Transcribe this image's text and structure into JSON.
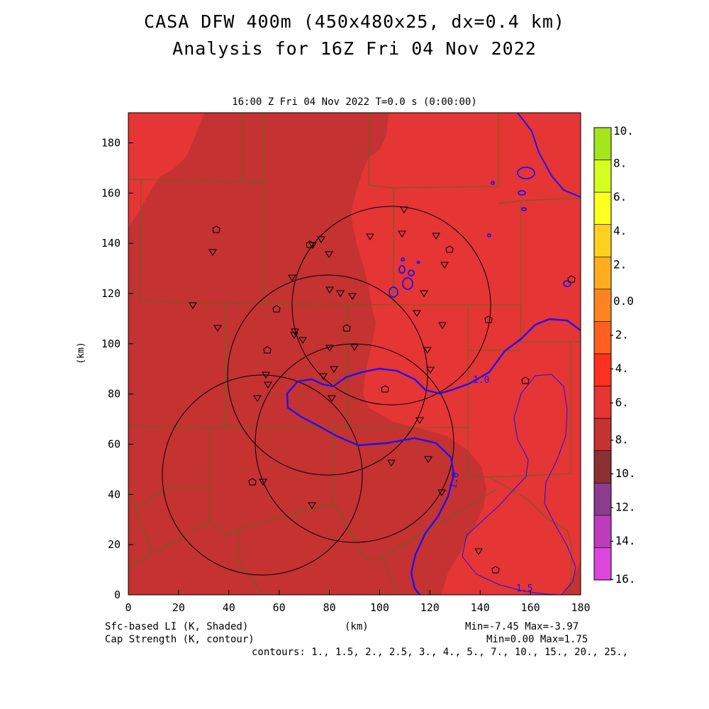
{
  "title": {
    "line1": "CASA DFW 400m (450x480x25, dx=0.4 km)",
    "line2": "Analysis for 16Z Fri 04 Nov 2022"
  },
  "plot": {
    "subtitle": "16:00 Z Fri 04 Nov 2022   T=0.0 s (0:00:00)",
    "xaxis": {
      "label": "(km)",
      "ticks": [
        "0",
        "20",
        "40",
        "60",
        "80",
        "100",
        "120",
        "140",
        "160",
        "180"
      ]
    },
    "yaxis": {
      "label": "(km)",
      "ticks": [
        "0",
        "20",
        "40",
        "60",
        "80",
        "100",
        "120",
        "140",
        "160",
        "180"
      ]
    },
    "contour_labels": [
      "1.0",
      "1.0",
      "1.5"
    ]
  },
  "colorbar": {
    "labels": [
      "10.",
      "8.",
      "6.",
      "4.",
      "2.",
      "0.0",
      "-2.",
      "-4.",
      "-6.",
      "-8.",
      "-10.",
      "-12.",
      "-14.",
      "-16."
    ],
    "colors": [
      "#a4e61c",
      "#d4ff20",
      "#ffff20",
      "#ffd020",
      "#ffac20",
      "#ff8420",
      "#ff6020",
      "#ff3020",
      "#e53535",
      "#c43232",
      "#8b3030",
      "#8c3c8c",
      "#bc3cbc",
      "#dc46dc"
    ]
  },
  "footer": {
    "shaded_label": "Sfc-based LI (K, Shaded)",
    "contour_label": "Cap Strength (K, contour)",
    "xunit": "(km)",
    "shaded_range": "Min=-7.45 Max=-3.97",
    "contour_range": "Min=0.00 Max=1.75",
    "contours": "contours: 1., 1.5, 2., 2.5, 3., 4., 5., 7., 10., 15., 20., 25.,"
  }
}
